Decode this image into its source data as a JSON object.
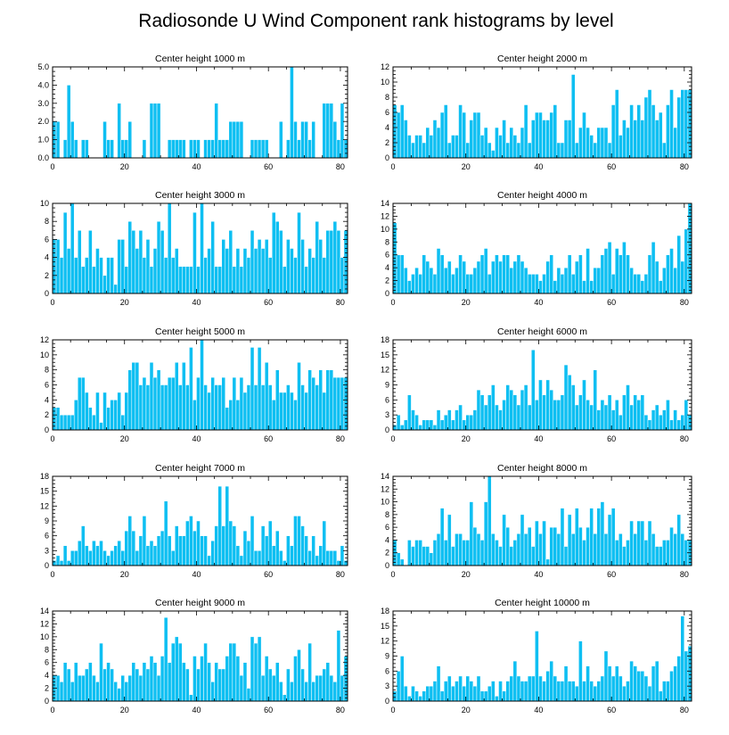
{
  "title": "Radiosonde U Wind Component rank histograms by level",
  "bar_color": "#0ebff2",
  "bar_edge_color": "#ffffff",
  "chart_data": [
    {
      "type": "bar",
      "title": "Center height 1000 m",
      "xlim": [
        0,
        82
      ],
      "ylim": [
        0,
        5
      ],
      "xticks": [
        0,
        20,
        40,
        60,
        80
      ],
      "yticks": [
        0,
        1,
        2,
        3,
        4,
        5
      ],
      "ytick_labels": [
        "0.0",
        "1.0",
        "2.0",
        "3.0",
        "4.0",
        "5.0"
      ],
      "values": [
        2,
        2,
        0,
        1,
        4,
        2,
        1,
        0,
        1,
        1,
        0,
        0,
        0,
        0,
        2,
        1,
        1,
        0,
        3,
        1,
        1,
        2,
        0,
        0,
        0,
        1,
        0,
        3,
        3,
        3,
        0,
        0,
        1,
        1,
        1,
        1,
        1,
        0,
        1,
        1,
        1,
        0,
        1,
        1,
        1,
        3,
        1,
        1,
        1,
        2,
        2,
        2,
        2,
        0,
        0,
        1,
        1,
        1,
        1,
        1,
        0,
        0,
        0,
        2,
        0,
        1,
        5,
        2,
        1,
        2,
        2,
        1,
        2,
        0,
        0,
        3,
        3,
        3,
        2,
        1,
        3,
        1
      ]
    },
    {
      "type": "bar",
      "title": "Center height 2000 m",
      "xlim": [
        0,
        82
      ],
      "ylim": [
        0,
        12
      ],
      "xticks": [
        0,
        20,
        40,
        60,
        80
      ],
      "yticks": [
        0,
        2,
        4,
        6,
        8,
        10,
        12
      ],
      "ytick_labels": [
        "0",
        "2",
        "4",
        "6",
        "8",
        "10",
        "12"
      ],
      "values": [
        7,
        6,
        7,
        5,
        3,
        2,
        3,
        3,
        2,
        4,
        3,
        5,
        4,
        6,
        7,
        2,
        3,
        3,
        7,
        6,
        2,
        5,
        6,
        6,
        3,
        4,
        2,
        1,
        4,
        3,
        5,
        2,
        4,
        3,
        2,
        4,
        7,
        2,
        5,
        6,
        6,
        5,
        5,
        6,
        7,
        2,
        2,
        5,
        5,
        11,
        2,
        4,
        6,
        4,
        3,
        2,
        4,
        4,
        4,
        2,
        7,
        9,
        3,
        5,
        4,
        7,
        5,
        7,
        5,
        8,
        9,
        7,
        5,
        6,
        2,
        7,
        9,
        4,
        8,
        9,
        9,
        9
      ]
    },
    {
      "type": "bar",
      "title": "Center height 3000 m",
      "xlim": [
        0,
        82
      ],
      "ylim": [
        0,
        10
      ],
      "xticks": [
        0,
        20,
        40,
        60,
        80
      ],
      "yticks": [
        0,
        2,
        4,
        6,
        8,
        10
      ],
      "ytick_labels": [
        "0",
        "2",
        "4",
        "6",
        "8",
        "10"
      ],
      "values": [
        6,
        6,
        4,
        9,
        5,
        10,
        4,
        7,
        3,
        4,
        7,
        3,
        5,
        4,
        2,
        4,
        4,
        1,
        6,
        6,
        3,
        8,
        7,
        5,
        7,
        4,
        6,
        3,
        5,
        8,
        7,
        4,
        10,
        4,
        5,
        3,
        3,
        3,
        3,
        9,
        3,
        10,
        4,
        5,
        8,
        3,
        3,
        6,
        5,
        7,
        3,
        5,
        3,
        5,
        4,
        7,
        5,
        6,
        5,
        6,
        4,
        9,
        8,
        7,
        3,
        6,
        5,
        4,
        9,
        6,
        3,
        5,
        4,
        8,
        6,
        4,
        7,
        7,
        8,
        7,
        4,
        7
      ]
    },
    {
      "type": "bar",
      "title": "Center height 4000 m",
      "xlim": [
        0,
        82
      ],
      "ylim": [
        0,
        14
      ],
      "xticks": [
        0,
        20,
        40,
        60,
        80
      ],
      "yticks": [
        0,
        2,
        4,
        6,
        8,
        10,
        12,
        14
      ],
      "ytick_labels": [
        "0",
        "2",
        "4",
        "6",
        "8",
        "10",
        "12",
        "14"
      ],
      "values": [
        11,
        6,
        6,
        4,
        2,
        3,
        4,
        3,
        6,
        5,
        4,
        3,
        7,
        6,
        4,
        5,
        3,
        4,
        6,
        5,
        3,
        3,
        4,
        5,
        6,
        7,
        3,
        5,
        6,
        5,
        6,
        6,
        4,
        5,
        6,
        5,
        4,
        3,
        3,
        3,
        2,
        3,
        5,
        6,
        2,
        4,
        3,
        4,
        6,
        3,
        5,
        6,
        2,
        7,
        2,
        4,
        4,
        6,
        7,
        8,
        3,
        7,
        6,
        8,
        6,
        4,
        3,
        3,
        2,
        3,
        6,
        8,
        5,
        2,
        4,
        6,
        7,
        4,
        9,
        5,
        10,
        14
      ]
    },
    {
      "type": "bar",
      "title": "Center height 5000 m",
      "xlim": [
        0,
        82
      ],
      "ylim": [
        0,
        12
      ],
      "xticks": [
        0,
        20,
        40,
        60,
        80
      ],
      "yticks": [
        0,
        2,
        4,
        6,
        8,
        10,
        12
      ],
      "ytick_labels": [
        "0",
        "2",
        "4",
        "6",
        "8",
        "10",
        "12"
      ],
      "values": [
        3,
        3,
        2,
        2,
        2,
        2,
        4,
        7,
        7,
        5,
        3,
        2,
        5,
        1,
        5,
        3,
        4,
        4,
        5,
        2,
        5,
        8,
        9,
        9,
        6,
        7,
        6,
        9,
        7,
        8,
        6,
        6,
        7,
        7,
        9,
        6,
        9,
        6,
        11,
        4,
        7,
        12,
        6,
        5,
        7,
        6,
        6,
        7,
        3,
        4,
        7,
        4,
        7,
        5,
        6,
        11,
        6,
        11,
        6,
        9,
        6,
        4,
        8,
        5,
        5,
        6,
        5,
        4,
        9,
        6,
        5,
        8,
        7,
        6,
        8,
        5,
        8,
        8,
        7,
        7,
        7,
        7
      ]
    },
    {
      "type": "bar",
      "title": "Center height 6000 m",
      "xlim": [
        0,
        82
      ],
      "ylim": [
        0,
        18
      ],
      "xticks": [
        0,
        20,
        40,
        60,
        80
      ],
      "yticks": [
        0,
        3,
        6,
        9,
        12,
        15,
        18
      ],
      "ytick_labels": [
        "0",
        "3",
        "6",
        "9",
        "12",
        "15",
        "18"
      ],
      "values": [
        1,
        3,
        1,
        2,
        7,
        4,
        3,
        1,
        2,
        2,
        2,
        1,
        4,
        2,
        3,
        4,
        2,
        4,
        5,
        2,
        3,
        3,
        4,
        8,
        7,
        5,
        7,
        9,
        5,
        4,
        6,
        9,
        8,
        7,
        5,
        8,
        9,
        5,
        16,
        6,
        10,
        7,
        10,
        8,
        6,
        6,
        7,
        13,
        11,
        9,
        5,
        7,
        10,
        6,
        5,
        12,
        4,
        6,
        5,
        7,
        4,
        6,
        3,
        7,
        9,
        5,
        7,
        6,
        7,
        3,
        2,
        4,
        5,
        3,
        4,
        6,
        2,
        4,
        2,
        3,
        6,
        3
      ]
    },
    {
      "type": "bar",
      "title": "Center height 7000 m",
      "xlim": [
        0,
        82
      ],
      "ylim": [
        0,
        18
      ],
      "xticks": [
        0,
        20,
        40,
        60,
        80
      ],
      "yticks": [
        0,
        3,
        6,
        9,
        12,
        15,
        18
      ],
      "ytick_labels": [
        "0",
        "3",
        "6",
        "9",
        "12",
        "15",
        "18"
      ],
      "values": [
        1,
        2,
        1,
        4,
        1,
        3,
        3,
        5,
        8,
        4,
        3,
        5,
        4,
        5,
        3,
        2,
        3,
        4,
        5,
        3,
        7,
        10,
        7,
        3,
        6,
        10,
        4,
        5,
        4,
        6,
        7,
        13,
        6,
        3,
        8,
        6,
        6,
        9,
        10,
        7,
        9,
        6,
        6,
        2,
        5,
        8,
        16,
        8,
        16,
        9,
        8,
        4,
        2,
        7,
        5,
        10,
        3,
        3,
        8,
        6,
        9,
        4,
        7,
        3,
        1,
        6,
        4,
        10,
        10,
        8,
        6,
        3,
        6,
        2,
        4,
        9,
        3,
        3,
        3,
        1,
        4,
        1
      ]
    },
    {
      "type": "bar",
      "title": "Center height 8000 m",
      "xlim": [
        0,
        82
      ],
      "ylim": [
        0,
        14
      ],
      "xticks": [
        0,
        20,
        40,
        60,
        80
      ],
      "yticks": [
        0,
        2,
        4,
        6,
        8,
        10,
        12,
        14
      ],
      "ytick_labels": [
        "0",
        "2",
        "4",
        "6",
        "8",
        "10",
        "12",
        "14"
      ],
      "values": [
        4,
        2,
        1,
        0,
        4,
        3,
        4,
        4,
        3,
        3,
        2,
        4,
        5,
        9,
        4,
        8,
        3,
        5,
        5,
        4,
        4,
        10,
        6,
        5,
        4,
        10,
        14,
        5,
        4,
        3,
        8,
        6,
        3,
        4,
        5,
        8,
        5,
        6,
        3,
        7,
        5,
        7,
        1,
        6,
        6,
        5,
        9,
        3,
        8,
        5,
        9,
        6,
        4,
        6,
        9,
        5,
        9,
        10,
        5,
        8,
        9,
        4,
        5,
        3,
        4,
        7,
        5,
        7,
        7,
        4,
        7,
        5,
        3,
        3,
        4,
        4,
        6,
        5,
        8,
        5,
        4,
        4
      ]
    },
    {
      "type": "bar",
      "title": "Center height 9000 m",
      "xlim": [
        0,
        82
      ],
      "ylim": [
        0,
        14
      ],
      "xticks": [
        0,
        20,
        40,
        60,
        80
      ],
      "yticks": [
        0,
        2,
        4,
        6,
        8,
        10,
        12,
        14
      ],
      "ytick_labels": [
        "0",
        "2",
        "4",
        "6",
        "8",
        "10",
        "12",
        "14"
      ],
      "values": [
        4,
        4,
        3,
        6,
        5,
        3,
        6,
        4,
        4,
        5,
        6,
        4,
        3,
        9,
        5,
        6,
        5,
        3,
        2,
        4,
        3,
        4,
        6,
        5,
        4,
        6,
        5,
        7,
        6,
        4,
        7,
        13,
        6,
        9,
        10,
        9,
        6,
        5,
        1,
        7,
        5,
        7,
        9,
        6,
        3,
        6,
        5,
        5,
        7,
        9,
        9,
        7,
        4,
        6,
        2,
        10,
        9,
        10,
        4,
        7,
        5,
        4,
        6,
        3,
        1,
        5,
        3,
        7,
        8,
        5,
        3,
        9,
        3,
        4,
        4,
        5,
        6,
        4,
        3,
        11,
        4,
        7
      ]
    },
    {
      "type": "bar",
      "title": "Center height 10000 m",
      "xlim": [
        0,
        82
      ],
      "ylim": [
        0,
        18
      ],
      "xticks": [
        0,
        20,
        40,
        60,
        80
      ],
      "yticks": [
        0,
        3,
        6,
        9,
        12,
        15,
        18
      ],
      "ytick_labels": [
        "0",
        "3",
        "6",
        "9",
        "12",
        "15",
        "18"
      ],
      "values": [
        2,
        6,
        9,
        3,
        1,
        3,
        2,
        1,
        2,
        3,
        3,
        4,
        7,
        2,
        4,
        5,
        3,
        4,
        5,
        3,
        5,
        4,
        3,
        5,
        2,
        2,
        3,
        4,
        1,
        4,
        2,
        4,
        5,
        8,
        5,
        4,
        4,
        5,
        5,
        14,
        5,
        4,
        6,
        8,
        5,
        4,
        4,
        7,
        4,
        4,
        3,
        12,
        4,
        7,
        4,
        3,
        4,
        5,
        10,
        7,
        5,
        7,
        5,
        3,
        4,
        8,
        7,
        6,
        6,
        5,
        3,
        7,
        8,
        2,
        4,
        4,
        6,
        7,
        9,
        17,
        10,
        11
      ]
    }
  ]
}
